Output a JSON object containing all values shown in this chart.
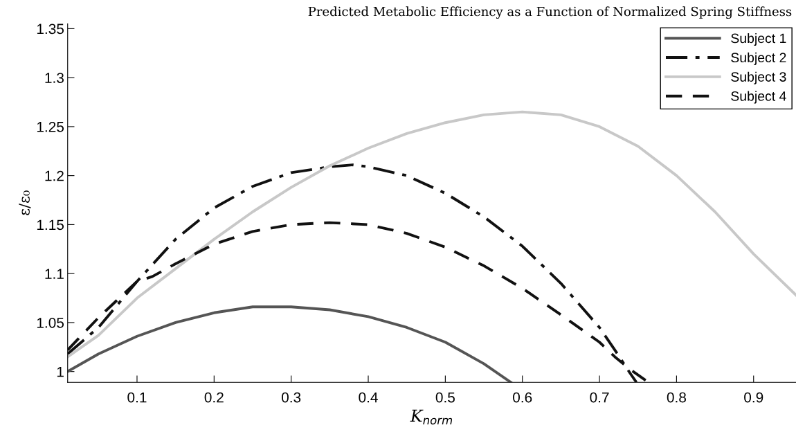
{
  "chart_data": {
    "type": "line",
    "title": "Predicted Metabolic Efficiency as a Function of Normalized Spring Stiffness",
    "xlabel": "K$_{norm}$",
    "ylabel": "ε/ε₀",
    "xlim": [
      0.01,
      0.955
    ],
    "ylim": [
      0.989,
      1.355
    ],
    "xticks": [
      0.1,
      0.2,
      0.3,
      0.4,
      0.5,
      0.6,
      0.7,
      0.8,
      0.9
    ],
    "yticks": [
      1,
      1.05,
      1.1,
      1.15,
      1.2,
      1.25,
      1.3,
      1.35
    ],
    "grid": false,
    "legend": "top right",
    "marker": "none",
    "series": [
      {
        "name": "Subject 1",
        "color": "#555555",
        "line_style": "solid",
        "x": [
          0.01,
          0.05,
          0.1,
          0.15,
          0.2,
          0.25,
          0.3,
          0.35,
          0.4,
          0.45,
          0.5,
          0.55,
          0.585
        ],
        "values": [
          1.0,
          1.018,
          1.036,
          1.05,
          1.06,
          1.066,
          1.066,
          1.063,
          1.056,
          1.045,
          1.03,
          1.008,
          0.989
        ]
      },
      {
        "name": "Subject 2",
        "color": "#111111",
        "line_style": "dashdot",
        "x": [
          0.01,
          0.05,
          0.1,
          0.15,
          0.2,
          0.25,
          0.3,
          0.35,
          0.38,
          0.4,
          0.45,
          0.5,
          0.55,
          0.6,
          0.65,
          0.7,
          0.72,
          0.74,
          0.748
        ],
        "values": [
          1.018,
          1.045,
          1.092,
          1.135,
          1.167,
          1.189,
          1.203,
          1.209,
          1.211,
          1.209,
          1.2,
          1.182,
          1.158,
          1.128,
          1.09,
          1.045,
          1.022,
          0.998,
          0.989
        ]
      },
      {
        "name": "Subject 3",
        "color": "#c8c8c8",
        "line_style": "solid",
        "x": [
          0.01,
          0.05,
          0.1,
          0.15,
          0.2,
          0.25,
          0.3,
          0.35,
          0.4,
          0.45,
          0.5,
          0.55,
          0.6,
          0.65,
          0.7,
          0.75,
          0.8,
          0.85,
          0.9,
          0.955
        ],
        "values": [
          1.015,
          1.037,
          1.075,
          1.105,
          1.135,
          1.163,
          1.188,
          1.21,
          1.228,
          1.243,
          1.254,
          1.262,
          1.265,
          1.262,
          1.25,
          1.23,
          1.2,
          1.163,
          1.12,
          1.078
        ]
      },
      {
        "name": "Subject 4",
        "color": "#111111",
        "line_style": "dashed",
        "x": [
          0.01,
          0.05,
          0.1,
          0.12,
          0.15,
          0.2,
          0.25,
          0.3,
          0.35,
          0.4,
          0.45,
          0.5,
          0.55,
          0.6,
          0.65,
          0.7,
          0.72,
          0.74,
          0.76
        ],
        "values": [
          1.022,
          1.055,
          1.092,
          1.097,
          1.11,
          1.13,
          1.143,
          1.15,
          1.152,
          1.15,
          1.141,
          1.127,
          1.108,
          1.085,
          1.058,
          1.03,
          1.015,
          1.002,
          0.991
        ]
      }
    ]
  }
}
